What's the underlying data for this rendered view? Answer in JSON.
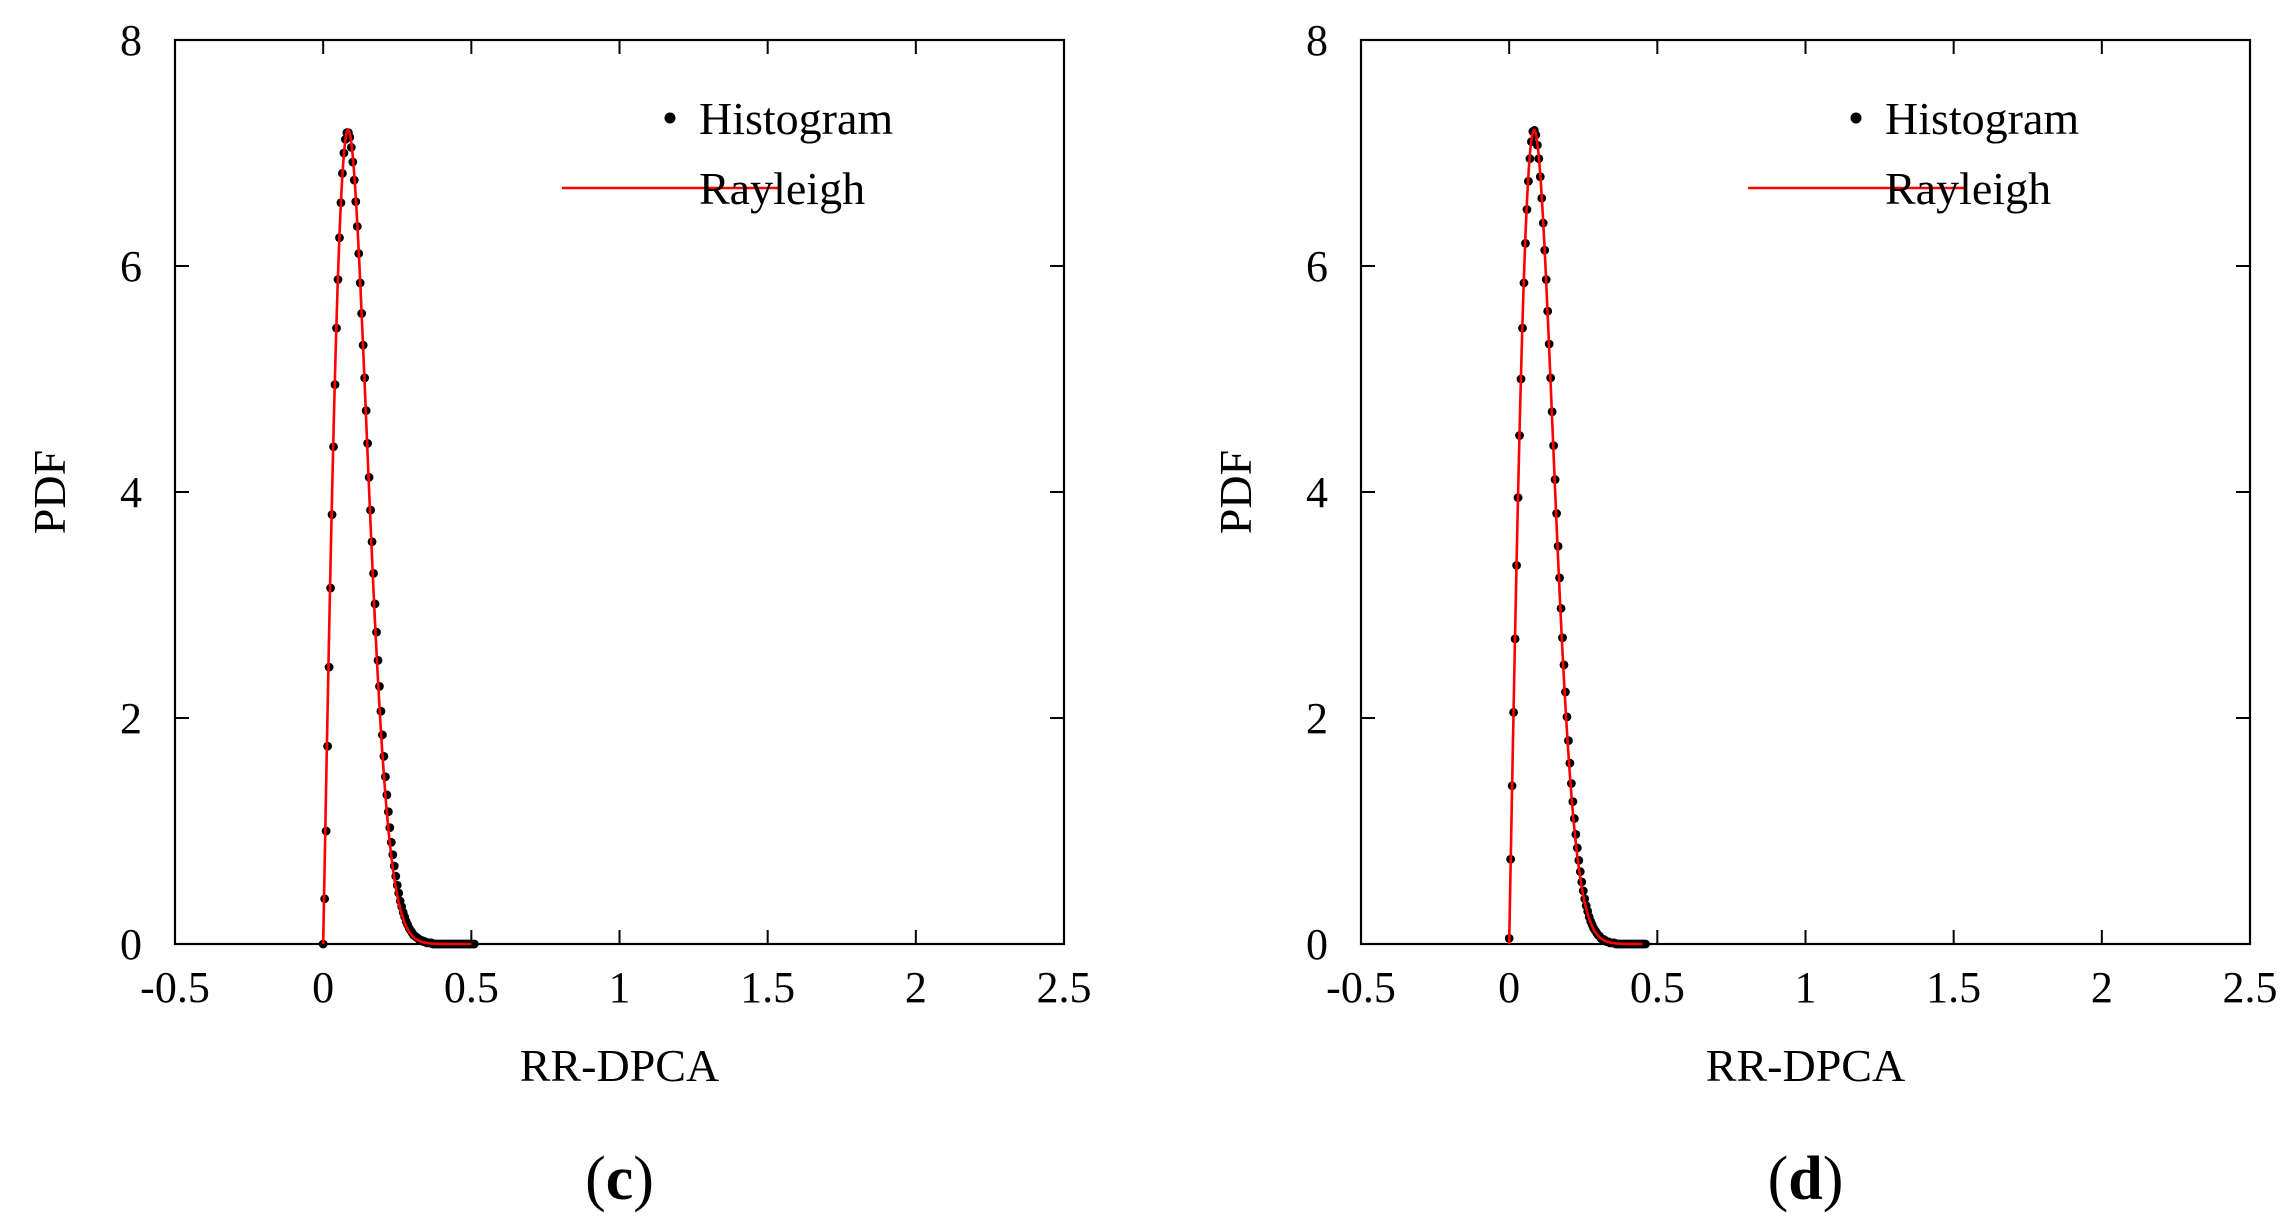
{
  "figure": {
    "panels": [
      "c",
      "d"
    ]
  },
  "chart_data": [
    {
      "type": "scatter",
      "panel_label": "c",
      "title": "",
      "xlabel": "RR-DPCA",
      "ylabel": "PDF",
      "xlim": [
        -0.5,
        2.5
      ],
      "ylim": [
        0,
        8
      ],
      "xticks": [
        -0.5,
        0,
        0.5,
        1,
        1.5,
        2,
        2.5
      ],
      "xtick_labels": [
        "-0.5",
        "0",
        "0.5",
        "1",
        "1.5",
        "2",
        "2.5"
      ],
      "yticks": [
        0,
        2,
        4,
        6,
        8
      ],
      "ytick_labels": [
        "0",
        "2",
        "4",
        "6",
        "8"
      ],
      "grid": false,
      "legend": {
        "position": "top-right",
        "entries": [
          "Histogram",
          "Rayleigh"
        ]
      },
      "series": [
        {
          "name": "Histogram",
          "style": "markers",
          "color": "#000000",
          "x": [
            0.0,
            0.005,
            0.01,
            0.015,
            0.02,
            0.025,
            0.03,
            0.035,
            0.04,
            0.045,
            0.05,
            0.055,
            0.06,
            0.065,
            0.07,
            0.075,
            0.08,
            0.085,
            0.09,
            0.095,
            0.1,
            0.105,
            0.11,
            0.115,
            0.12,
            0.125,
            0.13,
            0.135,
            0.14,
            0.145,
            0.15,
            0.155,
            0.16,
            0.165,
            0.17,
            0.175,
            0.18,
            0.185,
            0.19,
            0.195,
            0.2,
            0.205,
            0.21,
            0.215,
            0.22,
            0.225,
            0.23,
            0.235,
            0.24,
            0.245,
            0.25,
            0.255,
            0.26,
            0.265,
            0.27,
            0.275,
            0.28,
            0.285,
            0.29,
            0.295,
            0.3,
            0.305,
            0.31,
            0.315,
            0.32,
            0.325,
            0.33,
            0.335,
            0.34,
            0.345,
            0.35,
            0.355,
            0.36,
            0.365,
            0.37,
            0.375,
            0.38,
            0.385,
            0.39,
            0.395,
            0.4,
            0.405,
            0.41,
            0.415,
            0.42,
            0.425,
            0.43,
            0.435,
            0.44,
            0.445,
            0.45,
            0.455,
            0.46,
            0.465,
            0.47,
            0.475,
            0.48,
            0.485,
            0.49,
            0.495,
            0.5,
            0.505,
            0.51
          ],
          "y": [
            0.0,
            0.4,
            1.0,
            1.75,
            2.45,
            3.15,
            3.8,
            4.4,
            4.95,
            5.45,
            5.88,
            6.25,
            6.56,
            6.82,
            7.0,
            7.12,
            7.18,
            7.18,
            7.14,
            7.05,
            6.92,
            6.76,
            6.57,
            6.35,
            6.11,
            5.85,
            5.58,
            5.3,
            5.01,
            4.72,
            4.43,
            4.13,
            3.84,
            3.56,
            3.28,
            3.01,
            2.76,
            2.51,
            2.28,
            2.06,
            1.85,
            1.66,
            1.48,
            1.32,
            1.17,
            1.03,
            0.9,
            0.79,
            0.69,
            0.6,
            0.52,
            0.45,
            0.38,
            0.33,
            0.28,
            0.24,
            0.2,
            0.17,
            0.14,
            0.12,
            0.1,
            0.08,
            0.07,
            0.06,
            0.05,
            0.04,
            0.03,
            0.03,
            0.02,
            0.02,
            0.01,
            0.01,
            0.01,
            0.01,
            0.0,
            0.0,
            0.0,
            0.0,
            0.0,
            0.0,
            0.0,
            0.0,
            0.0,
            0.0,
            0.0,
            0.0,
            0.0,
            0.0,
            0.0,
            0.0,
            0.0,
            0.0,
            0.0,
            0.0,
            0.0,
            0.0,
            0.0,
            0.0,
            0.0,
            0.0,
            0.0,
            0.0,
            0.0
          ]
        },
        {
          "name": "Rayleigh",
          "style": "line",
          "color": "#ff0000",
          "sigma": 0.0842,
          "x_range": [
            0.0,
            0.5
          ]
        }
      ]
    },
    {
      "type": "scatter",
      "panel_label": "d",
      "title": "",
      "xlabel": "RR-DPCA",
      "ylabel": "PDF",
      "xlim": [
        -0.5,
        2.5
      ],
      "ylim": [
        0,
        8
      ],
      "xticks": [
        -0.5,
        0,
        0.5,
        1,
        1.5,
        2,
        2.5
      ],
      "xtick_labels": [
        "-0.5",
        "0",
        "0.5",
        "1",
        "1.5",
        "2",
        "2.5"
      ],
      "yticks": [
        0,
        2,
        4,
        6,
        8
      ],
      "ytick_labels": [
        "0",
        "2",
        "4",
        "6",
        "8"
      ],
      "grid": false,
      "legend": {
        "position": "top-right",
        "entries": [
          "Histogram",
          "Rayleigh"
        ]
      },
      "series": [
        {
          "name": "Histogram",
          "style": "markers",
          "color": "#000000",
          "x": [
            0.0,
            0.005,
            0.01,
            0.015,
            0.02,
            0.025,
            0.03,
            0.035,
            0.04,
            0.045,
            0.05,
            0.055,
            0.06,
            0.065,
            0.07,
            0.075,
            0.08,
            0.085,
            0.09,
            0.095,
            0.1,
            0.105,
            0.11,
            0.115,
            0.12,
            0.125,
            0.13,
            0.135,
            0.14,
            0.145,
            0.15,
            0.155,
            0.16,
            0.165,
            0.17,
            0.175,
            0.18,
            0.185,
            0.19,
            0.195,
            0.2,
            0.205,
            0.21,
            0.215,
            0.22,
            0.225,
            0.23,
            0.235,
            0.24,
            0.245,
            0.25,
            0.255,
            0.26,
            0.265,
            0.27,
            0.275,
            0.28,
            0.285,
            0.29,
            0.295,
            0.3,
            0.305,
            0.31,
            0.315,
            0.32,
            0.325,
            0.33,
            0.335,
            0.34,
            0.345,
            0.35,
            0.355,
            0.36,
            0.365,
            0.37,
            0.375,
            0.38,
            0.385,
            0.39,
            0.395,
            0.4,
            0.405,
            0.41,
            0.415,
            0.42,
            0.425,
            0.43,
            0.435,
            0.44,
            0.445,
            0.45,
            0.455,
            0.46
          ],
          "y": [
            0.05,
            0.75,
            1.4,
            2.05,
            2.7,
            3.35,
            3.95,
            4.5,
            5.0,
            5.45,
            5.85,
            6.2,
            6.5,
            6.75,
            6.95,
            7.1,
            7.19,
            7.2,
            7.16,
            7.07,
            6.95,
            6.79,
            6.6,
            6.38,
            6.14,
            5.88,
            5.6,
            5.31,
            5.01,
            4.71,
            4.41,
            4.11,
            3.81,
            3.52,
            3.24,
            2.97,
            2.71,
            2.47,
            2.23,
            2.01,
            1.8,
            1.6,
            1.42,
            1.26,
            1.11,
            0.97,
            0.85,
            0.74,
            0.64,
            0.55,
            0.47,
            0.4,
            0.34,
            0.29,
            0.24,
            0.2,
            0.17,
            0.14,
            0.12,
            0.1,
            0.08,
            0.07,
            0.05,
            0.04,
            0.04,
            0.03,
            0.02,
            0.02,
            0.01,
            0.01,
            0.01,
            0.01,
            0.0,
            0.0,
            0.0,
            0.0,
            0.0,
            0.0,
            0.0,
            0.0,
            0.0,
            0.0,
            0.0,
            0.0,
            0.0,
            0.0,
            0.0,
            0.0,
            0.0,
            0.0,
            0.0,
            0.0,
            0.0
          ]
        },
        {
          "name": "Rayleigh",
          "style": "line",
          "color": "#ff0000",
          "sigma": 0.0842,
          "x_range": [
            0.0,
            0.45
          ]
        }
      ]
    }
  ]
}
